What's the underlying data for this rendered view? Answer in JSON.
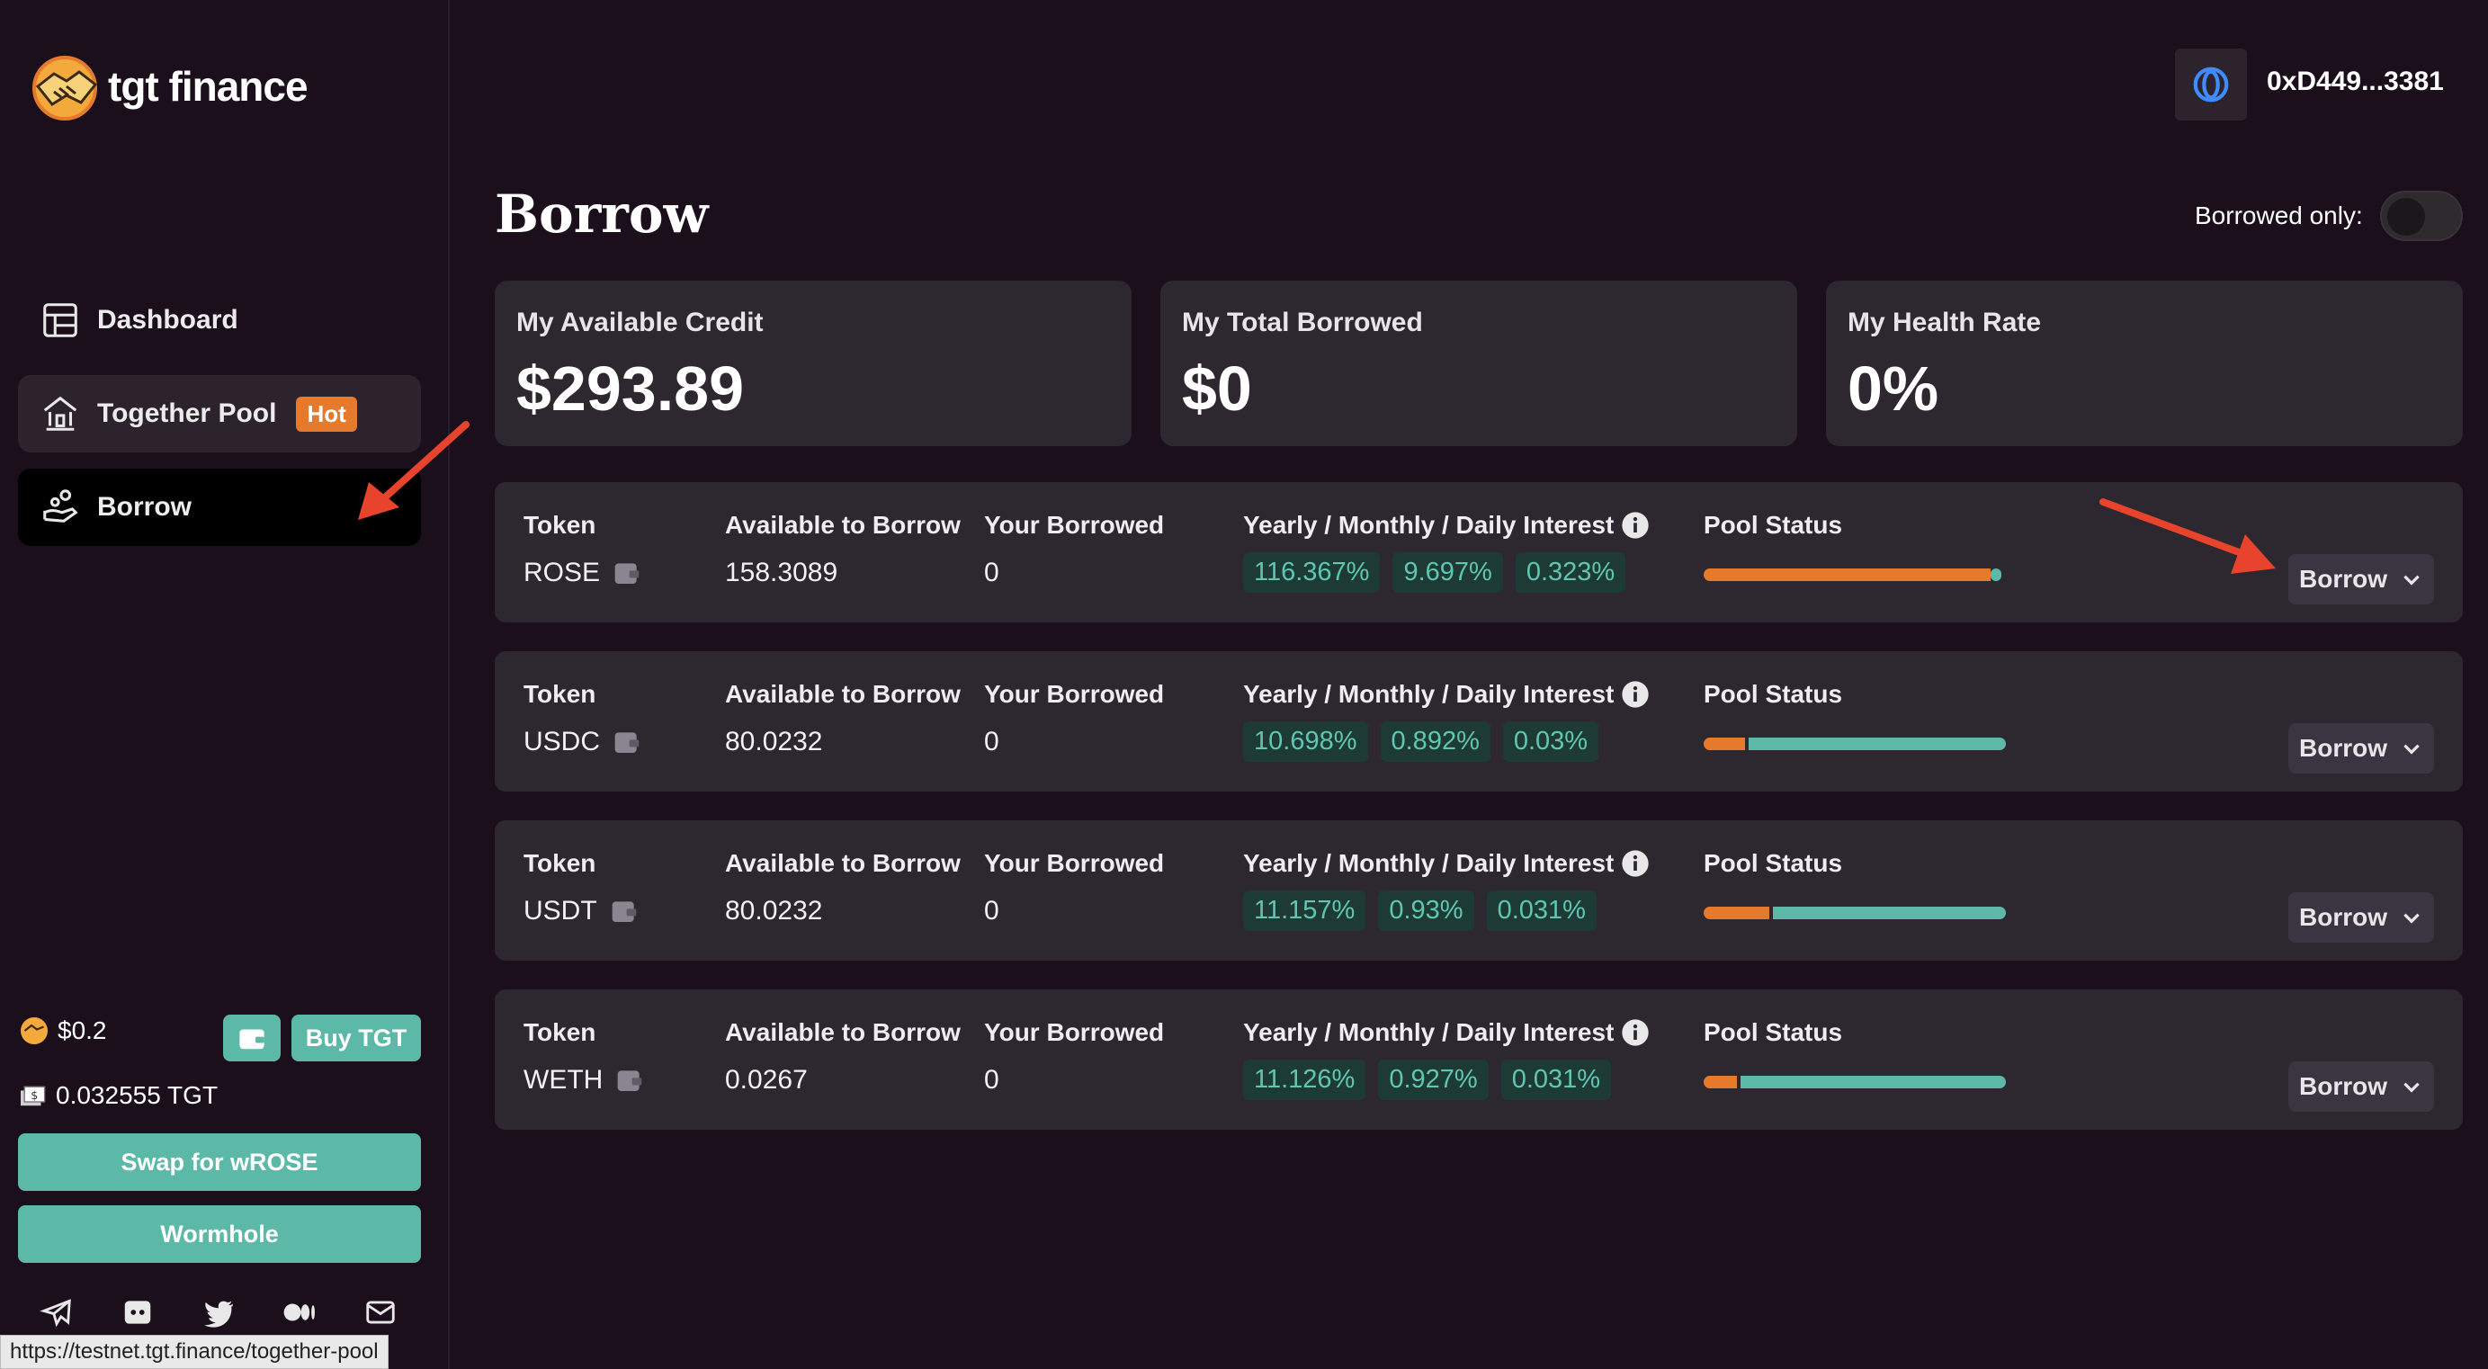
{
  "brand": {
    "name": "tgt finance"
  },
  "sidebar": {
    "items": [
      {
        "label": "Dashboard"
      },
      {
        "label": "Together Pool",
        "badge": "Hot"
      },
      {
        "label": "Borrow"
      }
    ],
    "price": "$0.2",
    "buy_label": "Buy TGT",
    "tgt_balance": "0.032555 TGT",
    "swap_label": "Swap for wROSE",
    "wormhole_label": "Wormhole",
    "socials": [
      "telegram-icon",
      "discord-icon",
      "twitter-icon",
      "medium-icon",
      "mail-icon"
    ]
  },
  "status_url": "https://testnet.tgt.finance/together-pool",
  "header": {
    "address": "0xD449...3381"
  },
  "main": {
    "title": "Borrow",
    "toggle_label": "Borrowed only:",
    "toggle_on": false,
    "stats": [
      {
        "label": "My Available Credit",
        "value": "$293.89"
      },
      {
        "label": "My Total Borrowed",
        "value": "$0"
      },
      {
        "label": "My Health Rate",
        "value": "0%"
      }
    ],
    "columns": {
      "token": "Token",
      "available": "Available to Borrow",
      "borrowed": "Your Borrowed",
      "interest": "Yearly / Monthly / Daily Interest",
      "pool": "Pool Status"
    },
    "borrow_label": "Borrow",
    "tokens": [
      {
        "symbol": "ROSE",
        "available": "158.3089",
        "borrowed": "0",
        "yearly": "116.367%",
        "monthly": "9.697%",
        "daily": "0.323%",
        "pool_used_fraction": 0.95
      },
      {
        "symbol": "USDC",
        "available": "80.0232",
        "borrowed": "0",
        "yearly": "10.698%",
        "monthly": "0.892%",
        "daily": "0.03%",
        "pool_used_fraction": 0.14
      },
      {
        "symbol": "USDT",
        "available": "80.0232",
        "borrowed": "0",
        "yearly": "11.157%",
        "monthly": "0.93%",
        "daily": "0.031%",
        "pool_used_fraction": 0.22
      },
      {
        "symbol": "WETH",
        "available": "0.0267",
        "borrowed": "0",
        "yearly": "11.126%",
        "monthly": "0.927%",
        "daily": "0.031%",
        "pool_used_fraction": 0.11
      }
    ]
  },
  "colors": {
    "accent": "#5db9a7",
    "orange": "#e67a2c",
    "background": "#1b0f1b",
    "card": "#2d2730",
    "arrow": "#e8432c"
  }
}
